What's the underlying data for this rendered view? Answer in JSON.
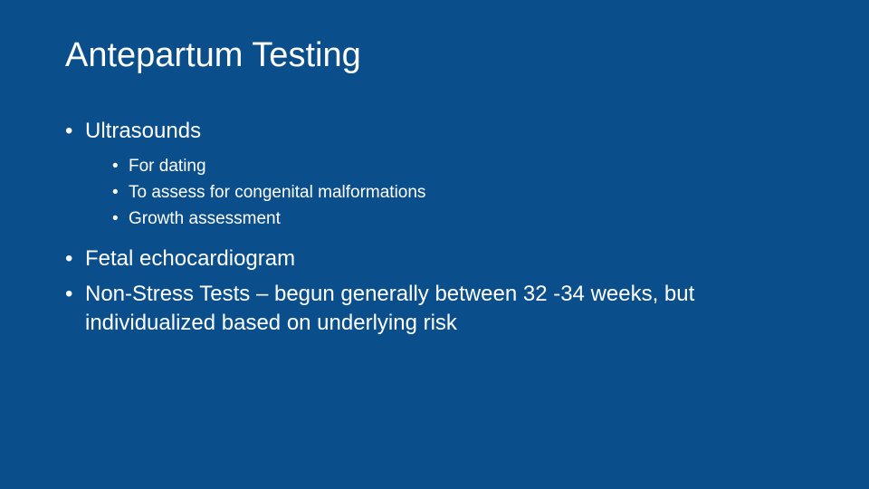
{
  "slide": {
    "background_color": "#0a4e8c",
    "text_color": "#ffffff",
    "title": "Antepartum Testing",
    "title_fontsize": 38,
    "body_fontsize": 24,
    "sub_fontsize": 19,
    "bullets": [
      {
        "text": "Ultrasounds",
        "sub": [
          "For dating",
          "To assess for congenital malformations",
          "Growth assessment"
        ]
      },
      {
        "text": "Fetal echocardiogram",
        "sub": []
      },
      {
        "text": "Non-Stress Tests – begun generally between 32 -34 weeks, but individualized based on underlying risk",
        "sub": []
      }
    ]
  }
}
